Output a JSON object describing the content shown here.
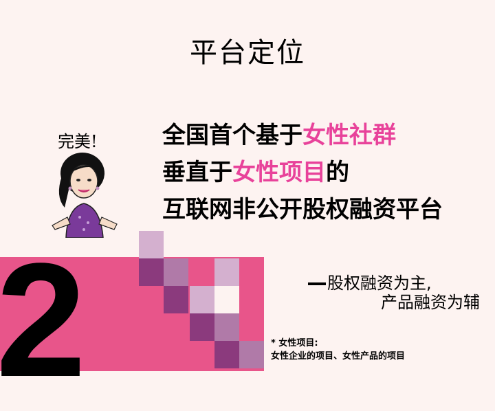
{
  "title": "平台定位",
  "exclaim": "完美!",
  "headline": {
    "line1_a": "全国首个基于",
    "line1_hl": "女性社群",
    "line2_a": "垂直于",
    "line2_hl": "女性项目",
    "line2_b": "的",
    "line3": "互联网非公开股权融资平台"
  },
  "big_number": "2",
  "subline1": "股权融资为主,",
  "subline2": "产品融资为辅",
  "note_line1": "* 女性项目:",
  "note_line2": "女性企业的项目、女性产品的项目",
  "colors": {
    "accent_pink": "#e8429a",
    "band_pink": "#e8558a",
    "purple_dark": "#8b3a7d",
    "purple_mid": "#b07aa8",
    "purple_light": "#d4b0cf"
  }
}
